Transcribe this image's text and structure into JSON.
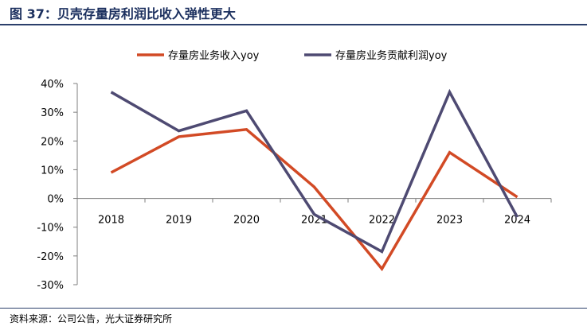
{
  "figure": {
    "title": "图 37：贝壳存量房利润比收入弹性更大",
    "source": "资料来源：公司公告，光大证券研究所"
  },
  "colors": {
    "title": "#1b2f5e",
    "rule": "#2b3f6b",
    "series1": "#d24a25",
    "series2": "#4e4a72",
    "axis": "#7f7f7f"
  },
  "chart_data": {
    "type": "line",
    "categories": [
      "2018",
      "2019",
      "2020",
      "2021",
      "2022",
      "2023",
      "2024"
    ],
    "series": [
      {
        "name": "存量房业务收入yoy",
        "values": [
          9,
          21.5,
          24,
          4,
          -24.5,
          16,
          0.5
        ]
      },
      {
        "name": "存量房业务贡献利润yoy",
        "values": [
          37,
          23.5,
          30.5,
          -5.5,
          -18.5,
          37,
          -6.5
        ]
      }
    ],
    "y_ticks": [
      "40%",
      "30%",
      "20%",
      "10%",
      "0%",
      "-10%",
      "-20%",
      "-30%"
    ],
    "ylim": [
      -30,
      40
    ],
    "grid": false,
    "legend_position": "top"
  }
}
